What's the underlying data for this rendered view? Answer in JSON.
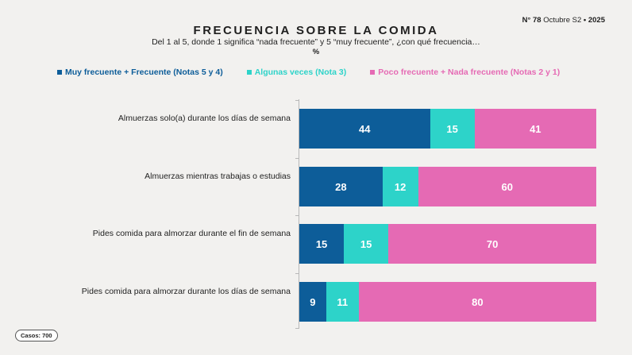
{
  "title": "FRECUENCIA SOBRE LA COMIDA",
  "subtitle": "Del 1 al 5, donde 1 significa “nada frecuente” y 5 “muy frecuente”, ¿con qué frecuencia…",
  "unit": "%",
  "edition": {
    "prefix": "N°",
    "number": "78",
    "period": "Octubre S2",
    "separator": "•",
    "year": "2025"
  },
  "cases": "Casos: 700",
  "colors": {
    "frequent": "#0d5d99",
    "sometimes": "#2dd3c9",
    "rare": "#e56ab4",
    "text": "#1f1f1f"
  },
  "chart_data": {
    "type": "bar",
    "orientation": "horizontal",
    "stacked": true,
    "title": "FRECUENCIA SOBRE LA COMIDA",
    "xlim": [
      0,
      100
    ],
    "legend_position": "top",
    "categories": [
      "Almuerzas solo(a) durante los días de semana",
      "Almuerzas mientras trabajas o estudias",
      "Pides comida para almorzar durante el fin de semana",
      "Pides comida para almorzar durante los días de semana"
    ],
    "series": [
      {
        "name": "Muy frecuente + Frecuente (Notas 5 y 4)",
        "color": "#0d5d99",
        "values": [
          44,
          28,
          15,
          9
        ]
      },
      {
        "name": "Algunas veces (Nota 3)",
        "color": "#2dd3c9",
        "values": [
          15,
          12,
          15,
          11
        ]
      },
      {
        "name": "Poco frecuente + Nada frecuente (Notas 2 y 1)",
        "color": "#e56ab4",
        "values": [
          41,
          60,
          70,
          80
        ]
      }
    ]
  }
}
